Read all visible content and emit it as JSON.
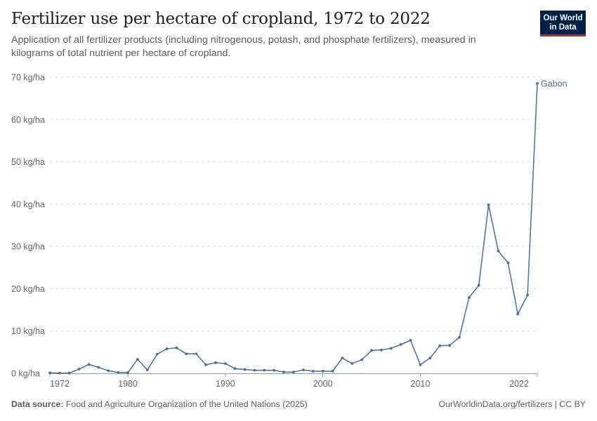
{
  "header": {
    "title": "Fertilizer use per hectare of cropland, 1972 to 2022",
    "subtitle": "Application of all fertilizer products (including nitrogenous, potash, and phosphate fertilizers), measured in kilograms of total nutrient per hectare of cropland."
  },
  "logo": {
    "line1": "Our World",
    "line2": "in Data"
  },
  "footer": {
    "source_label": "Data source:",
    "source_text": "Food and Agriculture Organization of the United Nations (2025)",
    "right_text": "OurWorldinData.org/fertilizers | CC BY"
  },
  "colors": {
    "series": "#4c6a9c",
    "grid": "#dddddd",
    "logo_bg": "#002147",
    "logo_accent": "#ce261e"
  },
  "chart_data": {
    "type": "line",
    "xlim": [
      1972,
      2022
    ],
    "ylim": [
      0,
      70
    ],
    "x_ticks": [
      "1972",
      "1980",
      "1990",
      "2000",
      "2010",
      "2022"
    ],
    "y_ticks": [
      "0 kg/ha",
      "10 kg/ha",
      "20 kg/ha",
      "30 kg/ha",
      "40 kg/ha",
      "50 kg/ha",
      "60 kg/ha",
      "70 kg/ha"
    ],
    "grid": "horizontal dashed",
    "series": [
      {
        "name": "Gabon",
        "color": "#4c6a9c",
        "x": [
          1972,
          1973,
          1974,
          1975,
          1976,
          1977,
          1978,
          1979,
          1980,
          1981,
          1982,
          1983,
          1984,
          1985,
          1986,
          1987,
          1988,
          1989,
          1990,
          1991,
          1992,
          1993,
          1994,
          1995,
          1996,
          1997,
          1998,
          1999,
          2000,
          2001,
          2002,
          2003,
          2004,
          2005,
          2006,
          2007,
          2008,
          2009,
          2010,
          2011,
          2012,
          2013,
          2014,
          2015,
          2016,
          2017,
          2018,
          2019,
          2020,
          2021,
          2022
        ],
        "y": [
          0.1,
          0.05,
          0.05,
          1.0,
          2.1,
          1.4,
          0.6,
          0.2,
          0.15,
          3.3,
          0.8,
          4.5,
          5.8,
          6.0,
          4.6,
          4.6,
          2.0,
          2.5,
          2.3,
          1.1,
          0.9,
          0.7,
          0.7,
          0.7,
          0.3,
          0.3,
          0.8,
          0.5,
          0.5,
          0.5,
          3.6,
          2.3,
          3.2,
          5.4,
          5.5,
          5.9,
          6.8,
          7.8,
          2.0,
          3.6,
          6.5,
          6.6,
          8.5,
          17.9,
          20.8,
          39.8,
          28.9,
          26.1,
          14.0,
          18.5,
          68.5
        ]
      }
    ]
  }
}
